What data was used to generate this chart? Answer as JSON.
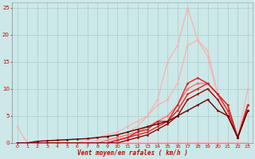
{
  "title": "",
  "xlabel": "Vent moyen/en rafales ( km/h )",
  "ylabel": "",
  "xlim": [
    -0.5,
    23.5
  ],
  "ylim": [
    0,
    26
  ],
  "xticks": [
    0,
    1,
    2,
    3,
    4,
    5,
    6,
    7,
    8,
    9,
    10,
    11,
    12,
    13,
    14,
    15,
    16,
    17,
    18,
    19,
    20,
    21,
    22,
    23
  ],
  "yticks": [
    0,
    5,
    10,
    15,
    20,
    25
  ],
  "bg_color": "#cce8e8",
  "grid_color": "#aacccc",
  "lines": [
    {
      "x": [
        0,
        1,
        2,
        3,
        4,
        5,
        6,
        7,
        8,
        9,
        10,
        11,
        12,
        13,
        14,
        15,
        16,
        17,
        18,
        19,
        20,
        21,
        22,
        23
      ],
      "y": [
        3,
        0,
        0,
        0,
        0,
        0,
        0,
        0,
        0,
        0,
        0,
        0,
        0,
        0,
        0,
        0,
        0,
        0,
        0,
        0,
        0,
        0,
        0,
        0
      ],
      "color": "#ffaaaa",
      "lw": 0.8,
      "marker": "o",
      "ms": 1.5
    },
    {
      "x": [
        0,
        1,
        2,
        3,
        4,
        5,
        6,
        7,
        8,
        9,
        10,
        11,
        12,
        13,
        14,
        15,
        16,
        17,
        18,
        19,
        20,
        21,
        22,
        23
      ],
      "y": [
        0,
        0,
        0,
        0,
        0,
        0,
        0,
        0,
        0.5,
        1,
        1.5,
        2,
        3,
        5,
        8,
        15,
        18,
        25,
        19,
        17,
        9,
        5,
        1,
        7
      ],
      "color": "#ffaaaa",
      "lw": 0.8,
      "marker": "^",
      "ms": 1.5
    },
    {
      "x": [
        0,
        1,
        2,
        3,
        4,
        5,
        6,
        7,
        8,
        9,
        10,
        11,
        12,
        13,
        14,
        15,
        16,
        17,
        18,
        19,
        20,
        21,
        22,
        23
      ],
      "y": [
        0,
        0,
        0,
        0,
        0,
        0,
        0,
        0.5,
        1,
        1.5,
        2,
        3,
        4,
        5,
        7,
        8,
        11,
        18,
        19,
        16,
        9,
        7,
        1,
        10
      ],
      "color": "#ffaaaa",
      "lw": 0.8,
      "marker": "o",
      "ms": 1.5
    },
    {
      "x": [
        0,
        1,
        2,
        3,
        4,
        5,
        6,
        7,
        8,
        9,
        10,
        11,
        12,
        13,
        14,
        15,
        16,
        17,
        18,
        19,
        20,
        21,
        22,
        23
      ],
      "y": [
        0,
        0,
        0,
        0,
        0,
        0,
        0,
        0,
        0,
        0.5,
        1,
        1.5,
        2,
        3,
        4,
        5,
        7,
        10,
        11,
        11,
        9,
        7,
        1,
        7
      ],
      "color": "#ff6666",
      "lw": 0.9,
      "marker": "o",
      "ms": 1.5
    },
    {
      "x": [
        0,
        1,
        2,
        3,
        4,
        5,
        6,
        7,
        8,
        9,
        10,
        11,
        12,
        13,
        14,
        15,
        16,
        17,
        18,
        19,
        20,
        21,
        22,
        23
      ],
      "y": [
        0,
        0,
        0,
        0,
        0,
        0,
        0,
        0,
        0,
        0,
        0.5,
        1,
        2,
        2.5,
        4,
        4,
        7,
        11,
        12,
        11,
        9,
        7,
        1,
        7
      ],
      "color": "#dd2222",
      "lw": 1.0,
      "marker": "D",
      "ms": 1.5
    },
    {
      "x": [
        0,
        1,
        2,
        3,
        4,
        5,
        6,
        7,
        8,
        9,
        10,
        11,
        12,
        13,
        14,
        15,
        16,
        17,
        18,
        19,
        20,
        21,
        22,
        23
      ],
      "y": [
        0,
        0,
        0,
        0,
        0,
        0,
        0,
        0,
        0,
        0,
        0.5,
        1,
        1.5,
        2,
        3,
        4,
        6,
        9,
        10,
        11,
        9,
        6,
        1,
        7
      ],
      "color": "#dd2222",
      "lw": 1.0,
      "marker": "o",
      "ms": 1.5
    },
    {
      "x": [
        0,
        1,
        2,
        3,
        4,
        5,
        6,
        7,
        8,
        9,
        10,
        11,
        12,
        13,
        14,
        15,
        16,
        17,
        18,
        19,
        20,
        21,
        22,
        23
      ],
      "y": [
        0,
        0,
        0,
        0,
        0,
        0,
        0,
        0,
        0,
        0,
        0,
        0.5,
        1,
        1.5,
        2.5,
        3.5,
        5,
        8,
        9,
        10,
        8,
        5,
        1,
        6
      ],
      "color": "#990000",
      "lw": 1.0,
      "marker": "o",
      "ms": 1.5
    },
    {
      "x": [
        0,
        1,
        2,
        3,
        4,
        5,
        6,
        7,
        8,
        9,
        10,
        11,
        12,
        13,
        14,
        15,
        16,
        17,
        18,
        19,
        20,
        21,
        22,
        23
      ],
      "y": [
        0,
        0,
        0.3,
        0.4,
        0.5,
        0.6,
        0.7,
        0.8,
        1,
        1.2,
        1.5,
        2,
        2.5,
        3,
        3.5,
        4,
        5,
        6,
        7,
        8,
        6,
        5,
        1,
        6
      ],
      "color": "#660000",
      "lw": 1.0,
      "marker": "o",
      "ms": 1.5
    }
  ]
}
